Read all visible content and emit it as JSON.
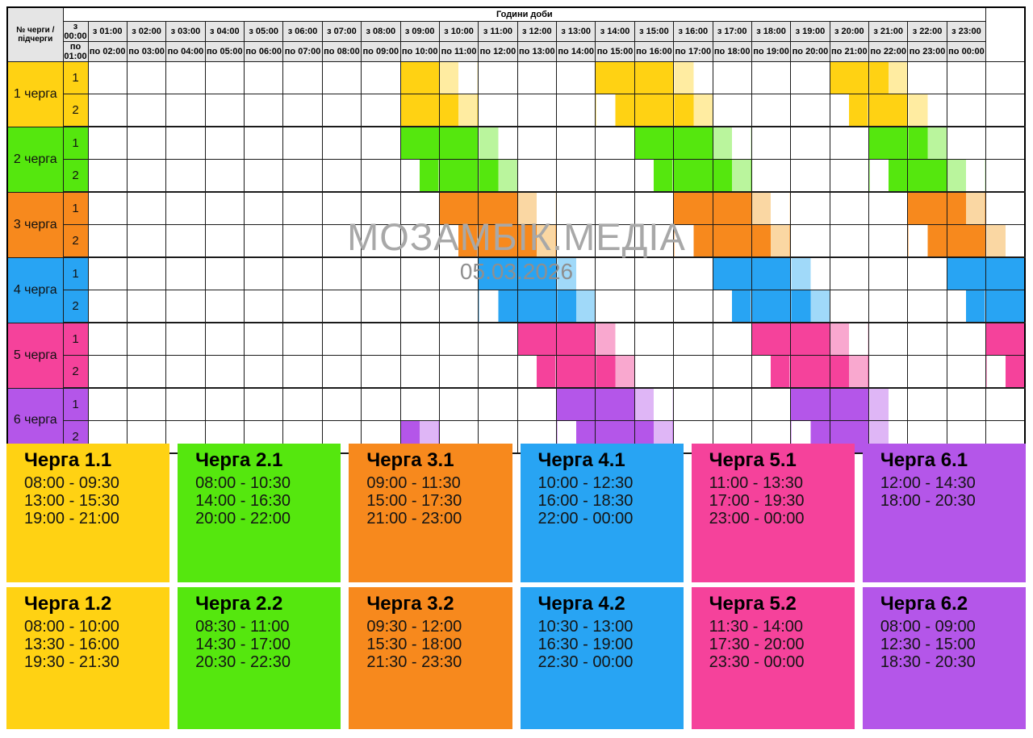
{
  "header": {
    "corner_label": "№ черги / підчерги",
    "hours_title": "Години доби",
    "hours": [
      {
        "from": "з 00:00",
        "to": "по 01:00"
      },
      {
        "from": "з 01:00",
        "to": "по 02:00"
      },
      {
        "from": "з 02:00",
        "to": "по 03:00"
      },
      {
        "from": "з 03:00",
        "to": "по 04:00"
      },
      {
        "from": "з 04:00",
        "to": "по 05:00"
      },
      {
        "from": "з 05:00",
        "to": "по 06:00"
      },
      {
        "from": "з 06:00",
        "to": "по 07:00"
      },
      {
        "from": "з 07:00",
        "to": "по 08:00"
      },
      {
        "from": "з 08:00",
        "to": "по 09:00"
      },
      {
        "from": "з 09:00",
        "to": "по 10:00"
      },
      {
        "from": "з 10:00",
        "to": "по 11:00"
      },
      {
        "from": "з 11:00",
        "to": "по 12:00"
      },
      {
        "from": "з 12:00",
        "to": "по 13:00"
      },
      {
        "from": "з 13:00",
        "to": "по 14:00"
      },
      {
        "from": "з 14:00",
        "to": "по 15:00"
      },
      {
        "from": "з 15:00",
        "to": "по 16:00"
      },
      {
        "from": "з 16:00",
        "to": "по 17:00"
      },
      {
        "from": "з 17:00",
        "to": "по 18:00"
      },
      {
        "from": "з 18:00",
        "to": "по 19:00"
      },
      {
        "from": "з 19:00",
        "to": "по 20:00"
      },
      {
        "from": "з 20:00",
        "to": "по 21:00"
      },
      {
        "from": "з 21:00",
        "to": "по 22:00"
      },
      {
        "from": "з 22:00",
        "to": "по 23:00"
      },
      {
        "from": "з 23:00",
        "to": "по 00:00"
      }
    ]
  },
  "watermark": {
    "title": "МОЗАМБІК.МЕДІА",
    "date": "05.03.2026"
  },
  "colors": {
    "header_bg": "#e5e5e5",
    "grid_border": "#1b1b1b",
    "watermark_gray": "#a8a8a8"
  },
  "queues": [
    {
      "label": "1 черга",
      "color": "#FFD213",
      "color_light": "#FFECA1",
      "sub": [
        {
          "num": "1",
          "title": "Черга 1.1",
          "periods": [
            "08:00 - 09:30",
            "13:00 - 15:30",
            "19:00 - 21:00"
          ]
        },
        {
          "num": "2",
          "title": "Черга 1.2",
          "periods": [
            "08:00 - 10:00",
            "13:30 - 16:00",
            "19:30 - 21:30"
          ]
        }
      ]
    },
    {
      "label": "2 черга",
      "color": "#55E70E",
      "color_light": "#BAF59D",
      "sub": [
        {
          "num": "1",
          "title": "Черга 2.1",
          "periods": [
            "08:00 - 10:30",
            "14:00 - 16:30",
            "20:00 - 22:00"
          ]
        },
        {
          "num": "2",
          "title": "Черга 2.2",
          "periods": [
            "08:30 - 11:00",
            "14:30 - 17:00",
            "20:30 - 22:30"
          ]
        }
      ]
    },
    {
      "label": "3 черга",
      "color": "#F7891D",
      "color_light": "#FAD7A3",
      "sub": [
        {
          "num": "1",
          "title": "Черга 3.1",
          "periods": [
            "09:00 - 11:30",
            "15:00 - 17:30",
            "21:00 - 23:00"
          ]
        },
        {
          "num": "2",
          "title": "Черга 3.2",
          "periods": [
            "09:30 - 12:00",
            "15:30 - 18:00",
            "21:30 - 23:30"
          ]
        }
      ]
    },
    {
      "label": "4 черга",
      "color": "#28A4F3",
      "color_light": "#A0D9F9",
      "sub": [
        {
          "num": "1",
          "title": "Черга 4.1",
          "periods": [
            "10:00 - 12:30",
            "16:00 - 18:30",
            "22:00 - 00:00"
          ]
        },
        {
          "num": "2",
          "title": "Черга 4.2",
          "periods": [
            "10:30 - 13:00",
            "16:30 - 19:00",
            "22:30 - 00:00"
          ]
        }
      ]
    },
    {
      "label": "5 черга",
      "color": "#F5429B",
      "color_light": "#F9A8CF",
      "sub": [
        {
          "num": "1",
          "title": "Черга 5.1",
          "periods": [
            "11:00 - 13:30",
            "17:00 - 19:30",
            "23:00 - 00:00"
          ]
        },
        {
          "num": "2",
          "title": "Черга 5.2",
          "periods": [
            "11:30 - 14:00",
            "17:30 - 20:00",
            "23:30 - 00:00"
          ]
        }
      ]
    },
    {
      "label": "6 черга",
      "color": "#B456E9",
      "color_light": "#DFB6F6",
      "sub": [
        {
          "num": "1",
          "title": "Черга 6.1",
          "periods": [
            "12:00 - 14:30",
            "18:00 - 20:30"
          ]
        },
        {
          "num": "2",
          "title": "Черга 6.2",
          "periods": [
            "08:00 - 09:00",
            "12:30 - 15:00",
            "18:30 - 20:30"
          ]
        }
      ]
    }
  ],
  "chart_data": {
    "type": "table",
    "title": "Години доби",
    "date_watermark": "05.03.2026",
    "x_axis_hours": [
      "00:00",
      "01:00",
      "02:00",
      "03:00",
      "04:00",
      "05:00",
      "06:00",
      "07:00",
      "08:00",
      "09:00",
      "10:00",
      "11:00",
      "12:00",
      "13:00",
      "14:00",
      "15:00",
      "16:00",
      "17:00",
      "18:00",
      "19:00",
      "20:00",
      "21:00",
      "22:00",
      "23:00"
    ],
    "resolution_minutes": 30,
    "shading_note": "final 30-minute slot of each outage period is drawn in the lighter tint, except periods ending at 00:00",
    "rows": [
      {
        "queue": "Черга 1.1",
        "outages": [
          "08:00 - 09:30",
          "13:00 - 15:30",
          "19:00 - 21:00"
        ]
      },
      {
        "queue": "Черга 1.2",
        "outages": [
          "08:00 - 10:00",
          "13:30 - 16:00",
          "19:30 - 21:30"
        ]
      },
      {
        "queue": "Черга 2.1",
        "outages": [
          "08:00 - 10:30",
          "14:00 - 16:30",
          "20:00 - 22:00"
        ]
      },
      {
        "queue": "Черга 2.2",
        "outages": [
          "08:30 - 11:00",
          "14:30 - 17:00",
          "20:30 - 22:30"
        ]
      },
      {
        "queue": "Черга 3.1",
        "outages": [
          "09:00 - 11:30",
          "15:00 - 17:30",
          "21:00 - 23:00"
        ]
      },
      {
        "queue": "Черга 3.2",
        "outages": [
          "09:30 - 12:00",
          "15:30 - 18:00",
          "21:30 - 23:30"
        ]
      },
      {
        "queue": "Черга 4.1",
        "outages": [
          "10:00 - 12:30",
          "16:00 - 18:30",
          "22:00 - 00:00"
        ]
      },
      {
        "queue": "Черга 4.2",
        "outages": [
          "10:30 - 13:00",
          "16:30 - 19:00",
          "22:30 - 00:00"
        ]
      },
      {
        "queue": "Черга 5.1",
        "outages": [
          "11:00 - 13:30",
          "17:00 - 19:30",
          "23:00 - 00:00"
        ]
      },
      {
        "queue": "Черга 5.2",
        "outages": [
          "11:30 - 14:00",
          "17:30 - 20:00",
          "23:30 - 00:00"
        ]
      },
      {
        "queue": "Черга 6.1",
        "outages": [
          "12:00 - 14:30",
          "18:00 - 20:30"
        ]
      },
      {
        "queue": "Черга 6.2",
        "outages": [
          "08:00 - 09:00",
          "12:30 - 15:00",
          "18:30 - 20:30"
        ]
      }
    ]
  }
}
